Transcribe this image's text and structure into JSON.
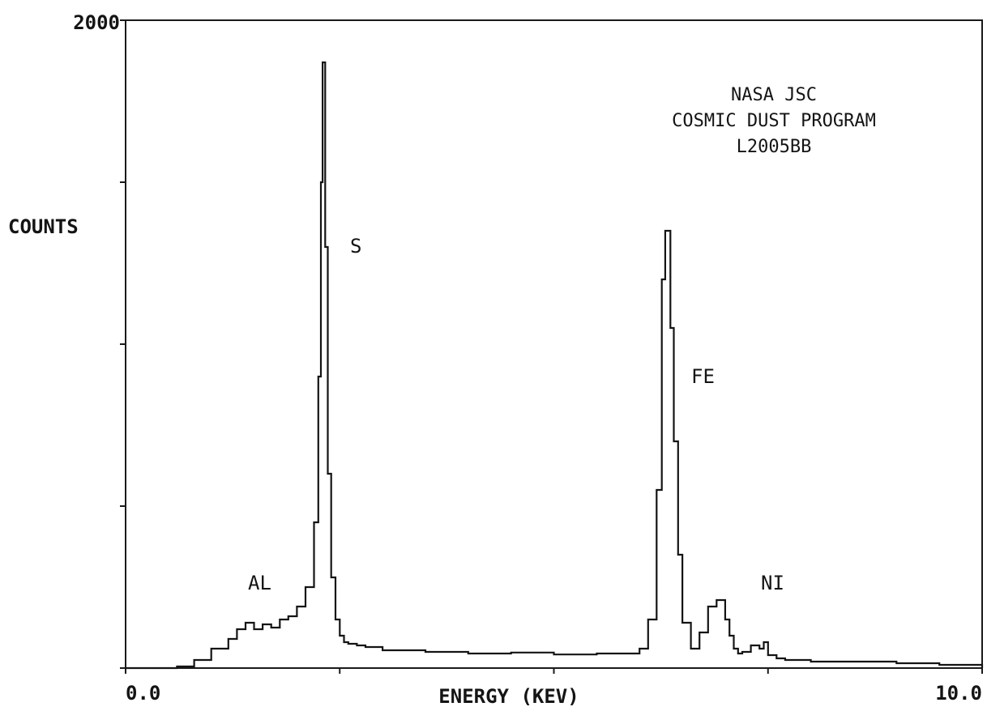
{
  "chart_data": {
    "type": "line",
    "title": "",
    "annotation_lines": [
      "NASA JSC",
      "COSMIC DUST PROGRAM",
      "L2005BB"
    ],
    "xlabel": "ENERGY (KEV)",
    "ylabel": "COUNTS",
    "xlim": [
      0.0,
      10.0
    ],
    "ylim": [
      0,
      2000
    ],
    "x_tick_labels": [
      {
        "value": 0.0,
        "label": "0.0"
      },
      {
        "value": 10.0,
        "label": "10.0"
      }
    ],
    "y_tick_labels": [
      {
        "value": 2000,
        "label": "2000"
      }
    ],
    "x_ticks": [
      0.0,
      2.5,
      5.0,
      7.5,
      10.0
    ],
    "y_ticks": [
      0,
      500,
      1000,
      1500,
      2000
    ],
    "grid": false,
    "legend": "none",
    "peak_labels": [
      {
        "text": "AL",
        "x": 1.49,
        "y": 270
      },
      {
        "text": "S",
        "x": 2.31,
        "y": 1290
      },
      {
        "text": "FE",
        "x": 6.4,
        "y": 880
      },
      {
        "text": "NI",
        "x": 7.47,
        "y": 230
      }
    ],
    "series": [
      {
        "line_style": "step",
        "x": [
          0.0,
          0.2,
          0.4,
          0.6,
          0.8,
          1.0,
          1.2,
          1.3,
          1.4,
          1.5,
          1.6,
          1.7,
          1.8,
          1.9,
          2.0,
          2.1,
          2.2,
          2.25,
          2.28,
          2.3,
          2.33,
          2.36,
          2.4,
          2.45,
          2.5,
          2.55,
          2.6,
          2.7,
          2.8,
          3.0,
          3.5,
          4.0,
          4.5,
          5.0,
          5.5,
          6.0,
          6.1,
          6.2,
          6.26,
          6.3,
          6.36,
          6.4,
          6.45,
          6.5,
          6.6,
          6.7,
          6.8,
          6.9,
          7.0,
          7.05,
          7.1,
          7.15,
          7.2,
          7.3,
          7.4,
          7.45,
          7.5,
          7.6,
          7.7,
          8.0,
          8.5,
          9.0,
          9.5,
          10.0
        ],
        "y": [
          0,
          0,
          0,
          5,
          25,
          60,
          90,
          120,
          140,
          120,
          135,
          125,
          150,
          160,
          190,
          250,
          450,
          900,
          1500,
          1870,
          1300,
          600,
          280,
          150,
          100,
          80,
          75,
          70,
          65,
          55,
          50,
          45,
          48,
          42,
          45,
          60,
          150,
          550,
          1200,
          1350,
          1050,
          700,
          350,
          140,
          60,
          110,
          190,
          210,
          150,
          100,
          60,
          45,
          50,
          70,
          60,
          80,
          40,
          30,
          25,
          20,
          20,
          15,
          10,
          0
        ]
      }
    ]
  }
}
